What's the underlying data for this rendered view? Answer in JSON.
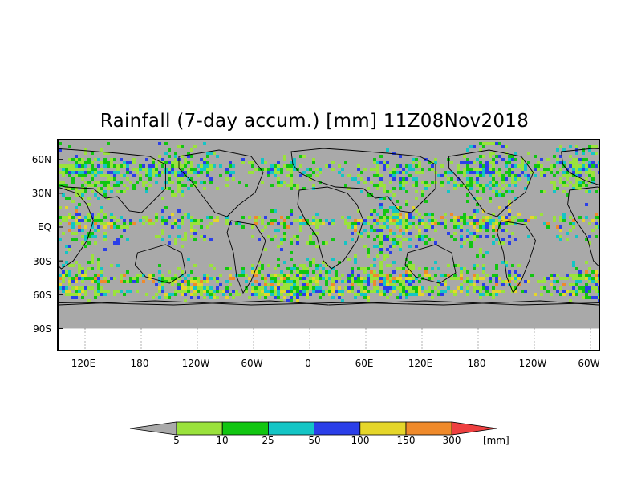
{
  "map": {
    "title": "Rainfall (7-day accum.) [mm] 11Z08Nov2018",
    "lat_labels": [
      "60N",
      "30N",
      "EQ",
      "30S",
      "60S",
      "90S"
    ],
    "lon_labels": [
      "120E",
      "180",
      "120W",
      "60W",
      "0",
      "60E",
      "120E",
      "180",
      "120W",
      "60W"
    ],
    "colors": {
      "background": "#a9a9a9",
      "nodata": "#ffffff",
      "coast": "#000000"
    }
  },
  "legend": {
    "units": "[mm]",
    "thresholds": [
      "5",
      "10",
      "25",
      "50",
      "100",
      "150",
      "300"
    ],
    "bins": [
      {
        "range": "<5",
        "color": "#aaaaaa"
      },
      {
        "range": "5-10",
        "color": "#9ae23c"
      },
      {
        "range": "10-25",
        "color": "#11c611"
      },
      {
        "range": "25-50",
        "color": "#14c5c5"
      },
      {
        "range": "50-100",
        "color": "#2b3fe8"
      },
      {
        "range": "100-150",
        "color": "#e5d62a"
      },
      {
        "range": "150-300",
        "color": "#ef8a2b"
      },
      {
        "range": ">300",
        "color": "#ee4040"
      }
    ]
  }
}
